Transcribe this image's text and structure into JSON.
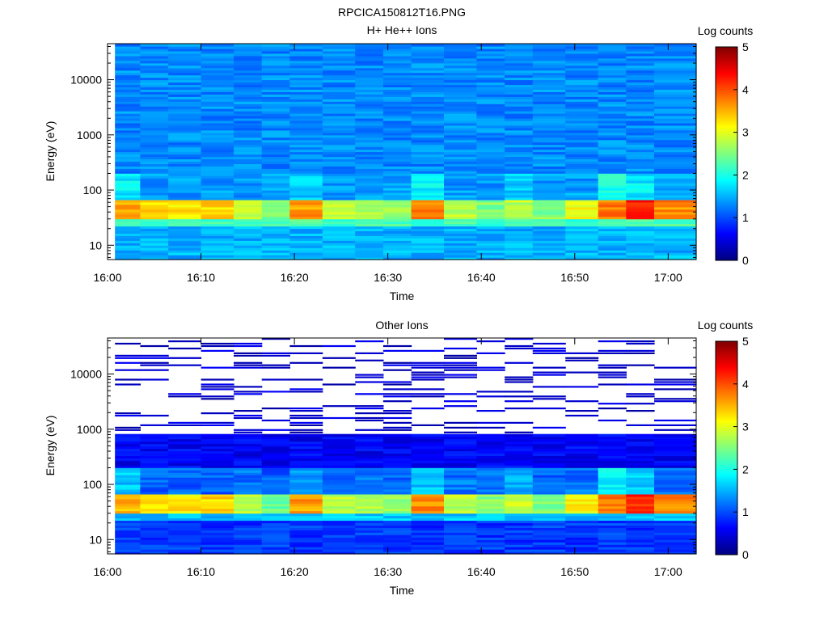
{
  "figure": {
    "title": "RPCICA150812T16.PNG"
  },
  "colors": {
    "colormap": [
      "#00007f",
      "#0000ff",
      "#007fff",
      "#00ffff",
      "#7fff7f",
      "#ffff00",
      "#ff7f00",
      "#ff0000",
      "#7f0000"
    ],
    "background": "#ffffff",
    "axis": "#000000"
  },
  "chart_data": [
    {
      "type": "heatmap",
      "title": "H+ He++ Ions",
      "xlabel": "Time",
      "ylabel": "Energy (eV)",
      "colorbar_label": "Log counts",
      "colorbar_ticks": [
        "0",
        "1",
        "2",
        "3",
        "4",
        "5"
      ],
      "clim": [
        0,
        5
      ],
      "xlim": [
        "16:00",
        "17:03"
      ],
      "xticks": [
        "16:00",
        "16:10",
        "16:20",
        "16:30",
        "16:40",
        "16:50",
        "17:00"
      ],
      "yscale": "log",
      "ylim": [
        5.5,
        45000
      ],
      "yticks": [
        "10",
        "100",
        "1000",
        "10000"
      ],
      "time_bins": [
        "16:02",
        "16:05",
        "16:08",
        "16:12",
        "16:15",
        "16:18",
        "16:21",
        "16:25",
        "16:28",
        "16:31",
        "16:34",
        "16:38",
        "16:41",
        "16:44",
        "16:47",
        "16:51",
        "16:54",
        "16:57",
        "17:00"
      ],
      "energy_bins": [
        6.5,
        10,
        15,
        22,
        28,
        33,
        38,
        44,
        52,
        62,
        75,
        100,
        140,
        200,
        300,
        500,
        800,
        1300,
        2200,
        3500,
        6000,
        10000,
        17000,
        28000,
        40000
      ],
      "bands": [
        {
          "e_min": 5.5,
          "e_max": 22,
          "level": 1.5
        },
        {
          "e_min": 22,
          "e_max": 30,
          "level": 2.2
        },
        {
          "e_min": 30,
          "e_max": 70,
          "levels": [
            3.6,
            3.3,
            3.2,
            3.3,
            2.8,
            2.5,
            3.6,
            2.8,
            2.7,
            2.6,
            3.7,
            2.8,
            2.5,
            2.8,
            2.5,
            3.1,
            3.8,
            4.2,
            3.7
          ]
        },
        {
          "e_min": 70,
          "e_max": 200,
          "levels": [
            1.8,
            1.4,
            1.4,
            1.4,
            1.4,
            1.4,
            1.6,
            1.4,
            1.4,
            1.4,
            1.8,
            1.4,
            1.4,
            1.6,
            1.4,
            1.4,
            2.0,
            1.8,
            1.5
          ]
        },
        {
          "e_min": 200,
          "e_max": 45000,
          "level": 1.3
        }
      ]
    },
    {
      "type": "heatmap",
      "title": "Other Ions",
      "xlabel": "Time",
      "ylabel": "Energy (eV)",
      "colorbar_label": "Log counts",
      "colorbar_ticks": [
        "0",
        "1",
        "2",
        "3",
        "4",
        "5"
      ],
      "clim": [
        0,
        5
      ],
      "xlim": [
        "16:00",
        "17:03"
      ],
      "xticks": [
        "16:00",
        "16:10",
        "16:20",
        "16:30",
        "16:40",
        "16:50",
        "17:00"
      ],
      "yscale": "log",
      "ylim": [
        5.5,
        45000
      ],
      "yticks": [
        "10",
        "100",
        "1000",
        "10000"
      ],
      "time_bins": [
        "16:02",
        "16:05",
        "16:08",
        "16:12",
        "16:15",
        "16:18",
        "16:21",
        "16:25",
        "16:28",
        "16:31",
        "16:34",
        "16:38",
        "16:41",
        "16:44",
        "16:47",
        "16:51",
        "16:54",
        "16:57",
        "17:00"
      ],
      "energy_bins": [
        6.5,
        10,
        15,
        22,
        28,
        33,
        38,
        44,
        52,
        62,
        75,
        100,
        140,
        200,
        300,
        500,
        800,
        1300,
        2200,
        3500,
        6000,
        10000,
        17000,
        28000,
        40000
      ],
      "bands": [
        {
          "e_min": 5.5,
          "e_max": 22,
          "level": 0.9
        },
        {
          "e_min": 22,
          "e_max": 30,
          "level": 1.6
        },
        {
          "e_min": 30,
          "e_max": 70,
          "levels": [
            3.5,
            3.3,
            3.2,
            3.3,
            2.8,
            2.4,
            3.6,
            2.8,
            2.7,
            2.6,
            3.7,
            2.8,
            2.5,
            2.8,
            2.5,
            3.1,
            3.8,
            4.2,
            3.7
          ]
        },
        {
          "e_min": 70,
          "e_max": 200,
          "levels": [
            1.6,
            1.1,
            1.1,
            1.1,
            1.2,
            1.1,
            1.4,
            1.2,
            1.2,
            1.1,
            1.6,
            1.2,
            1.2,
            1.5,
            1.1,
            1.2,
            1.8,
            1.6,
            1.2
          ]
        },
        {
          "e_min": 200,
          "e_max": 800,
          "level": 0.6
        },
        {
          "e_min": 800,
          "e_max": 45000,
          "level": 0.4,
          "sparse": true
        }
      ]
    }
  ]
}
